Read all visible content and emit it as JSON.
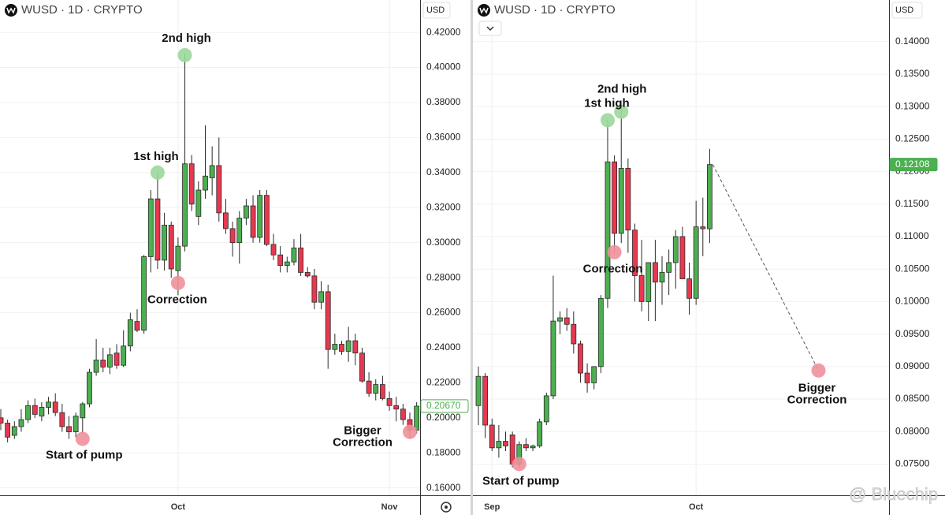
{
  "chart_data": [
    {
      "type": "candlestick",
      "title": "WUSD · 1D · CRYPTO",
      "currency": "USD",
      "categories": [
        null,
        null,
        null,
        null,
        null,
        null,
        null,
        null,
        null,
        null,
        null,
        null,
        null,
        null,
        null,
        null,
        null,
        null,
        null,
        null,
        null,
        null,
        null,
        null,
        null,
        null,
        "Oct",
        null,
        null,
        null,
        null,
        null,
        null,
        null,
        null,
        null,
        null,
        null,
        null,
        null,
        null,
        null,
        null,
        null,
        null,
        null,
        null,
        null,
        null,
        null,
        null,
        null,
        null,
        null,
        null,
        null,
        null,
        "Nov",
        null,
        null,
        null,
        null
      ],
      "open": [
        0.2,
        0.197,
        0.19,
        0.195,
        0.199,
        0.207,
        0.201,
        0.206,
        0.209,
        0.203,
        0.195,
        0.192,
        0.2,
        0.208,
        0.226,
        0.233,
        0.229,
        0.237,
        0.23,
        0.241,
        0.255,
        0.25,
        0.292,
        0.325,
        0.29,
        0.31,
        0.284,
        0.298,
        0.345,
        0.315,
        0.33,
        0.337,
        0.344,
        0.317,
        0.308,
        0.3,
        0.314,
        0.321,
        0.303,
        0.327,
        0.299,
        0.293,
        0.287,
        0.289,
        0.297,
        0.283,
        0.281,
        0.266,
        0.272,
        0.239,
        0.242,
        0.238,
        0.244,
        0.237,
        0.221,
        0.214,
        0.219,
        0.211,
        0.207,
        0.205,
        0.199,
        0.193
      ],
      "high": [
        0.205,
        0.199,
        0.198,
        0.205,
        0.21,
        0.211,
        0.209,
        0.212,
        0.214,
        0.208,
        0.201,
        0.203,
        0.209,
        0.228,
        0.245,
        0.24,
        0.24,
        0.242,
        0.25,
        0.26,
        0.262,
        0.293,
        0.33,
        0.34,
        0.317,
        0.312,
        0.303,
        0.408,
        0.35,
        0.335,
        0.367,
        0.355,
        0.36,
        0.325,
        0.312,
        0.318,
        0.325,
        0.327,
        0.33,
        0.33,
        0.305,
        0.298,
        0.292,
        0.302,
        0.305,
        0.286,
        0.285,
        0.278,
        0.276,
        0.248,
        0.244,
        0.252,
        0.248,
        0.24,
        0.226,
        0.222,
        0.224,
        0.215,
        0.212,
        0.208,
        0.203,
        0.209
      ],
      "low": [
        0.193,
        0.186,
        0.188,
        0.192,
        0.197,
        0.2,
        0.198,
        0.202,
        0.201,
        0.192,
        0.188,
        0.189,
        0.191,
        0.206,
        0.224,
        0.226,
        0.225,
        0.228,
        0.229,
        0.238,
        0.249,
        0.248,
        0.283,
        0.285,
        0.284,
        0.28,
        0.27,
        0.295,
        0.318,
        0.31,
        0.325,
        0.327,
        0.312,
        0.305,
        0.292,
        0.288,
        0.31,
        0.3,
        0.3,
        0.298,
        0.29,
        0.283,
        0.283,
        0.287,
        0.281,
        0.28,
        0.262,
        0.262,
        0.228,
        0.236,
        0.236,
        0.232,
        0.23,
        0.22,
        0.212,
        0.21,
        0.21,
        0.204,
        0.198,
        0.196,
        0.188,
        0.191
      ],
      "close": [
        0.197,
        0.189,
        0.195,
        0.199,
        0.207,
        0.202,
        0.206,
        0.209,
        0.203,
        0.195,
        0.192,
        0.201,
        0.208,
        0.226,
        0.233,
        0.229,
        0.236,
        0.23,
        0.241,
        0.256,
        0.25,
        0.292,
        0.325,
        0.29,
        0.31,
        0.285,
        0.298,
        0.345,
        0.322,
        0.33,
        0.338,
        0.344,
        0.317,
        0.308,
        0.3,
        0.314,
        0.321,
        0.303,
        0.327,
        0.299,
        0.293,
        0.287,
        0.289,
        0.297,
        0.283,
        0.281,
        0.266,
        0.272,
        0.239,
        0.242,
        0.238,
        0.244,
        0.237,
        0.221,
        0.214,
        0.219,
        0.211,
        0.207,
        0.205,
        0.199,
        0.193,
        0.2067
      ],
      "up_color": "#4caf50",
      "down_color": "#e8384f",
      "ylim": [
        0.1558,
        0.4385
      ],
      "yticks": [
        {
          "value": 0.42,
          "label": "0.42000"
        },
        {
          "value": 0.4,
          "label": "0.40000"
        },
        {
          "value": 0.38,
          "label": "0.38000"
        },
        {
          "value": 0.36,
          "label": "0.36000"
        },
        {
          "value": 0.34,
          "label": "0.34000"
        },
        {
          "value": 0.32,
          "label": "0.32000"
        },
        {
          "value": 0.3,
          "label": "0.30000"
        },
        {
          "value": 0.28,
          "label": "0.28000"
        },
        {
          "value": 0.26,
          "label": "0.26000"
        },
        {
          "value": 0.24,
          "label": "0.24000"
        },
        {
          "value": 0.22,
          "label": "0.22000"
        },
        {
          "value": 0.2,
          "label": "0.20000"
        },
        {
          "value": 0.18,
          "label": "0.18000"
        },
        {
          "value": 0.16,
          "label": "0.16000"
        }
      ],
      "last_price": {
        "value": 0.2067,
        "label": "0.20670"
      },
      "grid": true,
      "annotations": [
        {
          "lines": [
            "2nd high"
          ],
          "x": 27,
          "y": 0.407,
          "color": "#9bd79b"
        },
        {
          "lines": [
            "1st high"
          ],
          "x": 23,
          "y": 0.34,
          "color": "#9bd79b"
        },
        {
          "lines": [
            "Correction"
          ],
          "x": 26,
          "y": 0.277,
          "color": "#f0909a"
        },
        {
          "lines": [
            "Start of pump"
          ],
          "x": 12,
          "y": 0.188,
          "color": "#f0909a"
        },
        {
          "lines": [
            "Bigger",
            "Correction"
          ],
          "x": 60,
          "y": 0.192,
          "color": "#f0909a"
        }
      ]
    },
    {
      "type": "candlestick",
      "title": "WUSD · 1D · CRYPTO",
      "currency": "USD",
      "categories": [
        null,
        null,
        "Sep",
        null,
        null,
        null,
        null,
        null,
        null,
        null,
        null,
        null,
        null,
        null,
        null,
        null,
        null,
        null,
        null,
        null,
        null,
        null,
        null,
        null,
        null,
        null,
        null,
        null,
        null,
        null,
        null,
        null,
        "Oct",
        null,
        null
      ],
      "open": [
        0.084,
        0.0885,
        0.081,
        0.0775,
        0.0785,
        0.0795,
        0.075,
        0.078,
        0.0775,
        0.0778,
        0.0815,
        0.0855,
        0.097,
        0.0975,
        0.0965,
        0.0935,
        0.089,
        0.0875,
        0.09,
        0.1005,
        0.1215,
        0.1105,
        0.1205,
        0.111,
        0.104,
        0.1,
        0.106,
        0.103,
        0.1045,
        0.106,
        0.11,
        0.1035,
        0.1005,
        0.1115,
        0.1112
      ],
      "high": [
        0.09,
        0.089,
        0.082,
        0.081,
        0.08,
        0.08,
        0.0785,
        0.079,
        0.078,
        0.082,
        0.086,
        0.104,
        0.0985,
        0.099,
        0.0985,
        0.094,
        0.0905,
        0.09,
        0.101,
        0.128,
        0.1225,
        0.13,
        0.122,
        0.112,
        0.1095,
        0.106,
        0.1095,
        0.107,
        0.108,
        0.111,
        0.1115,
        0.106,
        0.1155,
        0.116,
        0.1235
      ],
      "low": [
        0.081,
        0.079,
        0.077,
        0.076,
        0.077,
        0.0745,
        0.0745,
        0.077,
        0.077,
        0.0775,
        0.081,
        0.085,
        0.095,
        0.0955,
        0.092,
        0.0875,
        0.086,
        0.0865,
        0.089,
        0.099,
        0.1075,
        0.109,
        0.1075,
        0.1,
        0.0985,
        0.097,
        0.097,
        0.0995,
        0.101,
        0.102,
        0.1035,
        0.098,
        0.0995,
        0.107,
        0.109
      ],
      "close": [
        0.0885,
        0.081,
        0.0775,
        0.0785,
        0.0778,
        0.075,
        0.078,
        0.0775,
        0.0778,
        0.0815,
        0.0855,
        0.097,
        0.0975,
        0.0965,
        0.0935,
        0.089,
        0.0875,
        0.09,
        0.1005,
        0.1215,
        0.1105,
        0.1205,
        0.111,
        0.104,
        0.1,
        0.106,
        0.103,
        0.1045,
        0.106,
        0.11,
        0.1035,
        0.1005,
        0.1115,
        0.1112,
        0.12108
      ],
      "up_color": "#4caf50",
      "down_color": "#e8384f",
      "ylim": [
        0.0702,
        0.1464
      ],
      "yticks": [
        {
          "value": 0.14,
          "label": "0.14000"
        },
        {
          "value": 0.135,
          "label": "0.13500"
        },
        {
          "value": 0.13,
          "label": "0.13000"
        },
        {
          "value": 0.125,
          "label": "0.12500"
        },
        {
          "value": 0.12,
          "label": "0.12000"
        },
        {
          "value": 0.115,
          "label": "0.11500"
        },
        {
          "value": 0.11,
          "label": "0.11000"
        },
        {
          "value": 0.105,
          "label": "0.10500"
        },
        {
          "value": 0.1,
          "label": "0.10000"
        },
        {
          "value": 0.095,
          "label": "0.09500"
        },
        {
          "value": 0.09,
          "label": "0.09000"
        },
        {
          "value": 0.085,
          "label": "0.08500"
        },
        {
          "value": 0.08,
          "label": "0.08000"
        },
        {
          "value": 0.075,
          "label": "0.07500"
        }
      ],
      "last_price": {
        "value": 0.12108,
        "label": "0.12108"
      },
      "grid": true,
      "annotations": [
        {
          "lines": [
            "2nd high"
          ],
          "x": 21,
          "y": 0.1292,
          "color": "#9bd79b"
        },
        {
          "lines": [
            "1st high"
          ],
          "x": 19,
          "y": 0.1279,
          "color": "#9bd79b"
        },
        {
          "lines": [
            "Correction"
          ],
          "x": 20,
          "y": 0.1076,
          "color": "#f0909a"
        },
        {
          "lines": [
            "Start of pump"
          ],
          "x": 6,
          "y": 0.075,
          "color": "#f0909a"
        },
        {
          "lines": [
            "Bigger",
            "Correction"
          ],
          "x": 50,
          "y": 0.0894,
          "color": "#f0909a"
        }
      ]
    }
  ],
  "watermark": "@ Bluechip"
}
